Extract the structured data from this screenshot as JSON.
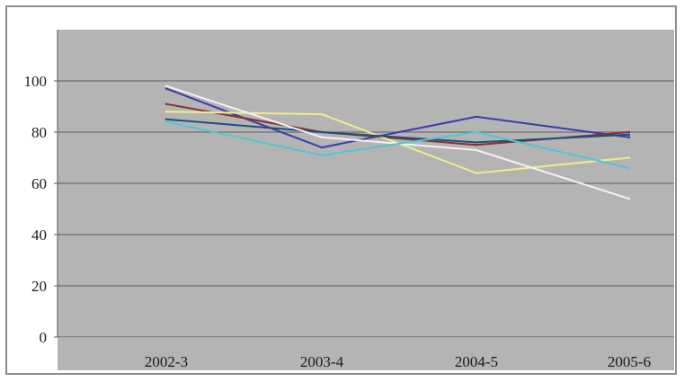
{
  "chart_data": {
    "type": "line",
    "categories": [
      "2002-3",
      "2003-4",
      "2004-5",
      "2005-6"
    ],
    "yticks": [
      0,
      20,
      40,
      60,
      80,
      100
    ],
    "ylim": [
      0,
      120
    ],
    "grid": true,
    "legend": "none",
    "plot_background": "#b4b4b4",
    "series": [
      {
        "color": "#3b3bb0",
        "values": [
          97,
          74,
          86,
          78
        ]
      },
      {
        "color": "#8b2f2f",
        "values": [
          91,
          80,
          75,
          80
        ]
      },
      {
        "color": "#f0ec8c",
        "values": [
          88,
          87,
          64,
          70
        ]
      },
      {
        "color": "#1f4f7a",
        "values": [
          85,
          80,
          76,
          79
        ]
      },
      {
        "color": "#f2f2f2",
        "values": [
          98,
          78,
          73,
          54
        ]
      },
      {
        "color": "#4ec7d6",
        "values": [
          84,
          71,
          80,
          66
        ]
      }
    ]
  }
}
